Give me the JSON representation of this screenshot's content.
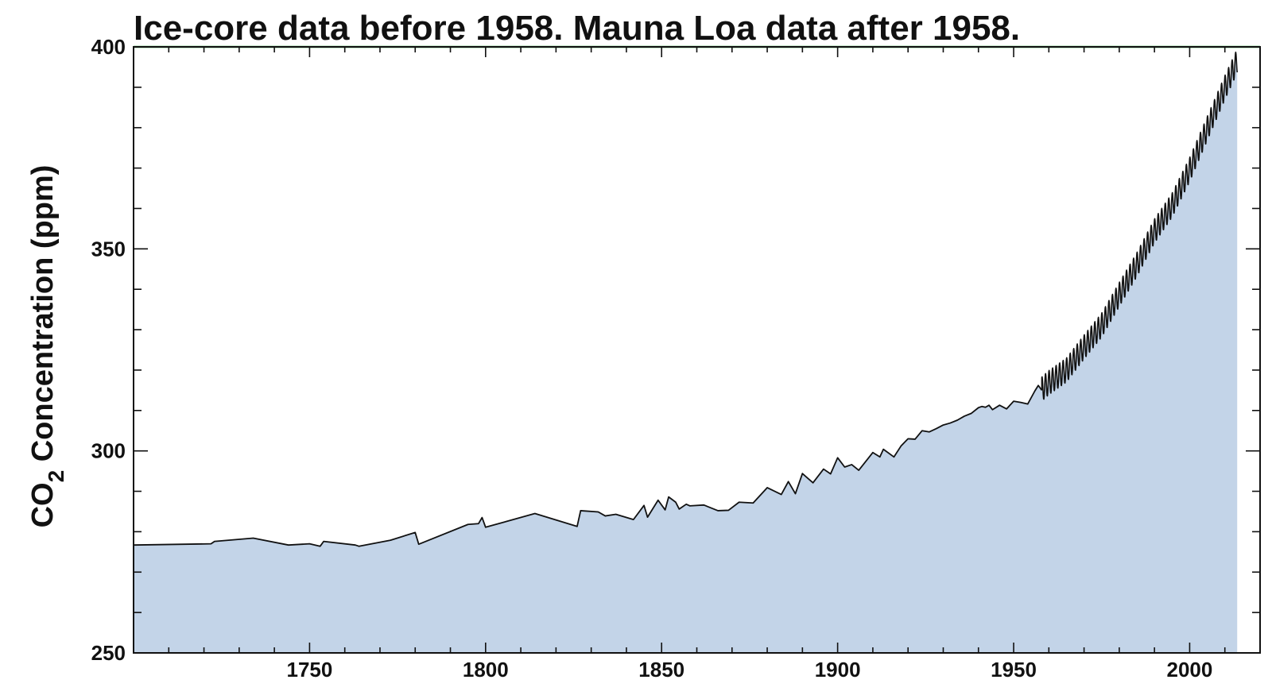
{
  "chart_data": {
    "type": "area",
    "title": "Ice-core data before 1958. Mauna Loa data after 1958.",
    "ylabel": "CO2 Concentration (ppm)",
    "ylabel_parts": {
      "main": "CO",
      "sub": "2",
      "rest": " Concentration (ppm)"
    },
    "xlabel": "",
    "xlim": [
      1700,
      2020
    ],
    "ylim": [
      250,
      400
    ],
    "x_ticks": [
      1750,
      1800,
      1850,
      1900,
      1950,
      2000
    ],
    "x_tick_labels": [
      "1750",
      "1800",
      "1850",
      "1900",
      "1950",
      "2000"
    ],
    "y_ticks": [
      250,
      300,
      350,
      400
    ],
    "y_tick_labels": [
      "250",
      "300",
      "350",
      "400"
    ],
    "reference_line": {
      "y": 400,
      "color": "#1a9a2a"
    },
    "grid": false,
    "fill_color": "#c3d4e8",
    "line_color": "#111111",
    "series": [
      {
        "segment": "ice-core",
        "x": [
          1700,
          1722,
          1723,
          1734,
          1744,
          1750,
          1753,
          1754,
          1763,
          1764,
          1773,
          1780,
          1781,
          1795,
          1798,
          1799,
          1800,
          1814,
          1826,
          1827,
          1832,
          1834,
          1837,
          1842,
          1845,
          1846,
          1849,
          1851,
          1852,
          1854,
          1855,
          1857,
          1858,
          1862,
          1866,
          1869,
          1872,
          1876,
          1880,
          1884,
          1886,
          1888,
          1890,
          1893,
          1896,
          1898,
          1900,
          1902,
          1904,
          1906,
          1910,
          1912,
          1913,
          1916,
          1918,
          1920,
          1922,
          1924,
          1926,
          1928,
          1930,
          1932,
          1934,
          1936,
          1938,
          1940,
          1941,
          1942,
          1943,
          1944,
          1946,
          1948,
          1950,
          1952,
          1954,
          1956,
          1957,
          1958
        ],
        "values": [
          276.7,
          277.0,
          277.6,
          278.4,
          276.7,
          277.0,
          276.4,
          277.6,
          276.7,
          276.4,
          277.9,
          279.8,
          276.9,
          281.8,
          282.0,
          283.5,
          281.1,
          284.5,
          281.3,
          285.2,
          284.9,
          283.9,
          284.3,
          283.0,
          286.5,
          283.6,
          287.8,
          285.4,
          288.6,
          287.3,
          285.6,
          286.8,
          286.4,
          286.6,
          285.2,
          285.3,
          287.3,
          287.1,
          290.9,
          289.2,
          292.4,
          289.4,
          294.4,
          292.1,
          295.5,
          294.3,
          298.3,
          296.0,
          296.6,
          295.2,
          299.6,
          298.5,
          300.4,
          298.5,
          301.2,
          303.0,
          302.9,
          305.0,
          304.7,
          305.5,
          306.4,
          306.9,
          307.6,
          308.6,
          309.3,
          310.7,
          311.0,
          310.8,
          311.3,
          310.2,
          311.3,
          310.4,
          312.3,
          312.0,
          311.6,
          314.8,
          316.2,
          315.0
        ]
      },
      {
        "segment": "mauna-loa-trend",
        "x": [
          1958,
          1960,
          1965,
          1970,
          1975,
          1980,
          1985,
          1990,
          1995,
          2000,
          2005,
          2010,
          2013.5
        ],
        "values": [
          315.3,
          316.9,
          320.0,
          325.7,
          331.1,
          338.7,
          346.1,
          354.4,
          360.8,
          369.6,
          379.8,
          389.9,
          396.5
        ]
      }
    ],
    "seasonal_amplitude_ppm": 3
  }
}
